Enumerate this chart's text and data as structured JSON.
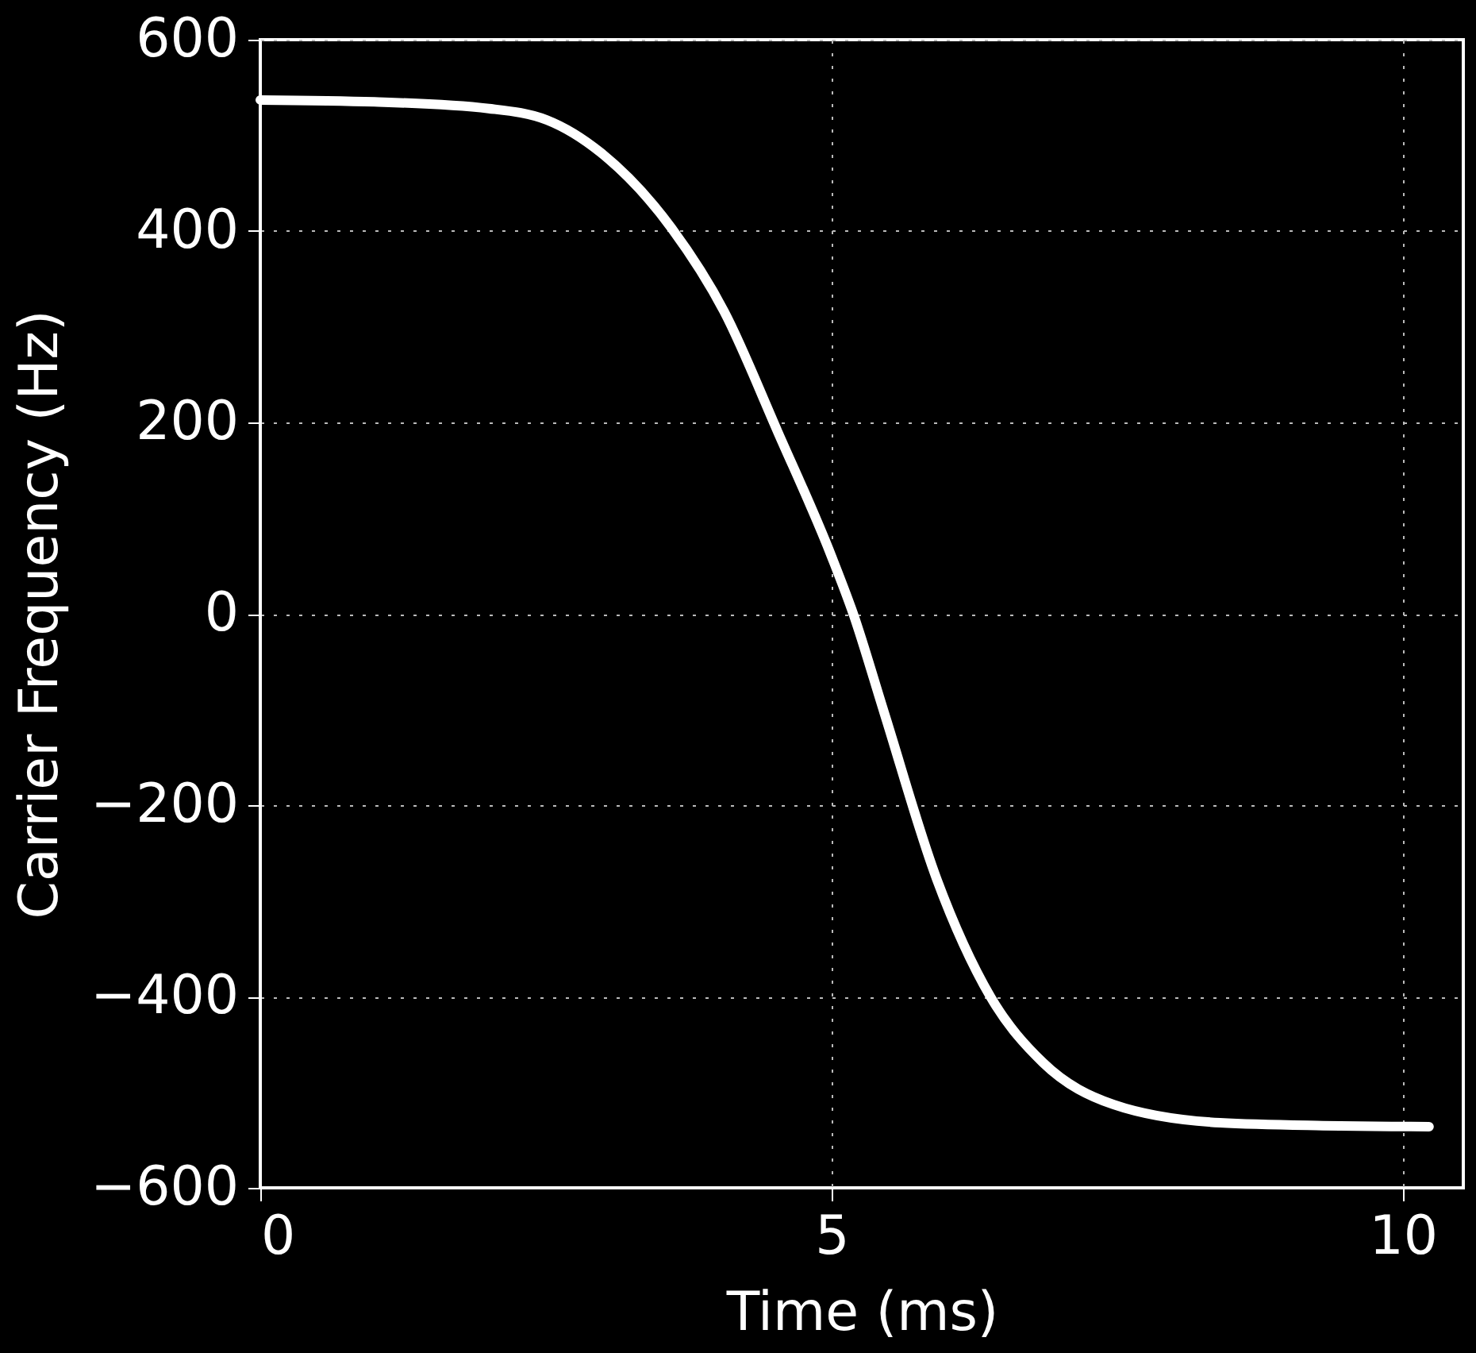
{
  "chart_data": {
    "type": "line",
    "xlabel": "Time (ms)",
    "ylabel": "Carrier Frequency (Hz)",
    "x": [
      0,
      1,
      2,
      2.51,
      2.98,
      3.6,
      4.06,
      4.53,
      5.0,
      5.19,
      5.46,
      5.92,
      6.39,
      6.85,
      7.47,
      8.4,
      9.3,
      10.23
    ],
    "series": [
      {
        "color": "#ffffff",
        "values": [
          537,
          535,
          528,
          516,
          482,
          403,
          316,
          190,
          60,
          0,
          -103,
          -277,
          -400,
          -469,
          -513,
          -532,
          -535,
          -536
        ]
      }
    ],
    "xlim": [
      0,
      10.53
    ],
    "ylim": [
      -600,
      600
    ],
    "xticks": [
      0,
      5,
      10
    ],
    "yticks": [
      -600,
      -400,
      -200,
      0,
      200,
      400,
      600
    ],
    "grid": true,
    "line_style": "solid",
    "marker": "none"
  }
}
